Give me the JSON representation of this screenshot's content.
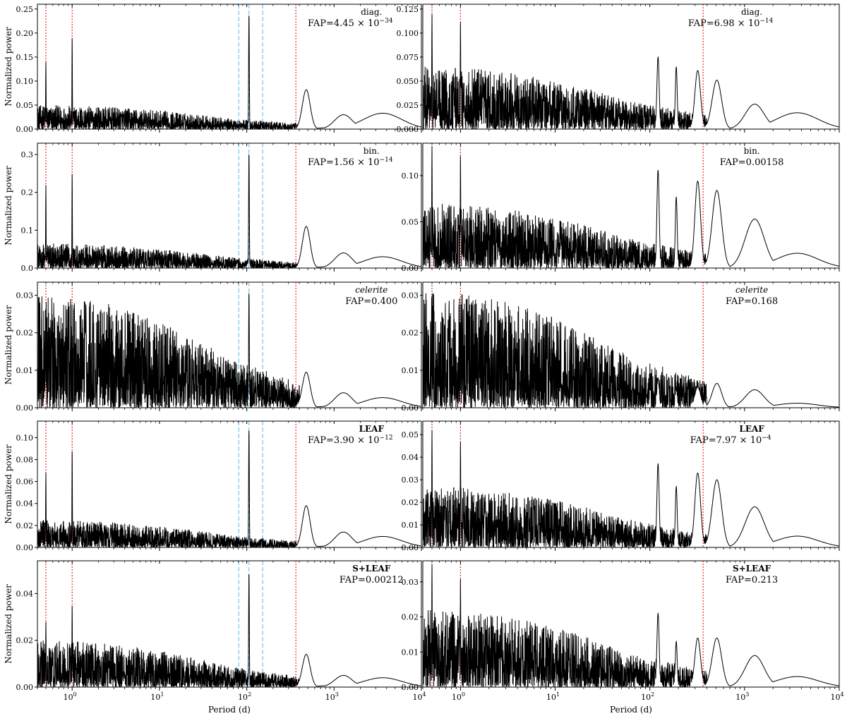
{
  "figure": {
    "xlabel_left": "Period (d)",
    "xlabel_right": "Period (d)",
    "ylabel": "Normalized power"
  },
  "chart_data": [
    {
      "type": "line",
      "panel": "diag-left",
      "title": "diag.",
      "fap_prefix": "FAP=4.45 × 10",
      "fap_exp": "−34",
      "xscale": "log",
      "xlim": [
        0.4,
        10000
      ],
      "ylim": [
        0,
        0.26
      ],
      "yticks": [
        "0.00",
        "0.05",
        "0.10",
        "0.15",
        "0.20",
        "0.25"
      ],
      "yvals": [
        0,
        0.05,
        0.1,
        0.15,
        0.2,
        0.25
      ],
      "xlabel": "",
      "ylabel": "Normalized power",
      "red_lines": [
        0.5,
        1.0,
        365
      ],
      "blue_lines": [
        81,
        106,
        152
      ],
      "peaks": {
        "p05": 0.14,
        "p1": 0.19,
        "p106": 0.24,
        "p480": 0.082,
        "p1200": 0.03,
        "p3500": 0.033
      },
      "noise": [
        0.05,
        0.025
      ],
      "right": false
    },
    {
      "type": "line",
      "panel": "diag-right",
      "title": "diag.",
      "fap_prefix": "FAP=6.98 × 10",
      "fap_exp": "−14",
      "xscale": "log",
      "xlim": [
        0.4,
        10000
      ],
      "ylim": [
        0,
        0.13
      ],
      "yticks": [
        "0.000",
        "0.025",
        "0.050",
        "0.075",
        "0.100",
        "0.125"
      ],
      "yvals": [
        0,
        0.025,
        0.05,
        0.075,
        0.1,
        0.125
      ],
      "xlabel": "",
      "ylabel": "",
      "red_lines": [
        0.5,
        1.0,
        365
      ],
      "blue_lines": [],
      "peaks": {
        "p05": 0.12,
        "p1": 0.112,
        "p125": 0.075,
        "p190": 0.065,
        "p320": 0.061,
        "p510": 0.051,
        "p1200": 0.026,
        "p3500": 0.017
      },
      "noise": [
        0.065,
        0.03
      ],
      "right": true
    },
    {
      "type": "line",
      "panel": "bin-left",
      "title": "bin.",
      "fap_prefix": "FAP=1.56 × 10",
      "fap_exp": "−14",
      "xscale": "log",
      "xlim": [
        0.4,
        10000
      ],
      "ylim": [
        0,
        0.33
      ],
      "yticks": [
        "0.0",
        "0.1",
        "0.2",
        "0.3"
      ],
      "yvals": [
        0,
        0.1,
        0.2,
        0.3
      ],
      "xlabel": "",
      "ylabel": "Normalized power",
      "red_lines": [
        0.5,
        1.0,
        365
      ],
      "blue_lines": [
        81,
        106,
        152
      ],
      "peaks": {
        "p05": 0.22,
        "p1": 0.25,
        "p106": 0.305,
        "p480": 0.11,
        "p1200": 0.04,
        "p3500": 0.03
      },
      "noise": [
        0.065,
        0.03
      ],
      "right": false
    },
    {
      "type": "line",
      "panel": "bin-right",
      "title": "bin.",
      "fap_prefix": "FAP=0.00158",
      "fap_exp": "",
      "xscale": "log",
      "xlim": [
        0.4,
        10000
      ],
      "ylim": [
        0,
        0.135
      ],
      "yticks": [
        "0.00",
        "0.05",
        "0.10"
      ],
      "yvals": [
        0,
        0.05,
        0.1
      ],
      "xlabel": "",
      "ylabel": "",
      "red_lines": [
        0.5,
        1.0,
        365
      ],
      "blue_lines": [],
      "peaks": {
        "p05": 0.132,
        "p1": 0.122,
        "p125": 0.106,
        "p190": 0.077,
        "p320": 0.094,
        "p510": 0.084,
        "p1200": 0.053,
        "p3500": 0.016
      },
      "noise": [
        0.07,
        0.035
      ],
      "right": true
    },
    {
      "type": "line",
      "panel": "celerite-left",
      "title": "celerite",
      "fap_prefix": "FAP=0.400",
      "fap_exp": "",
      "xscale": "log",
      "xlim": [
        0.4,
        10000
      ],
      "ylim": [
        0,
        0.0335
      ],
      "yticks": [
        "0.00",
        "0.01",
        "0.02",
        "0.03"
      ],
      "yvals": [
        0,
        0.01,
        0.02,
        0.03
      ],
      "xlabel": "",
      "ylabel": "Normalized power",
      "red_lines": [
        0.5,
        1.0,
        365
      ],
      "blue_lines": [
        81,
        106,
        152
      ],
      "peaks": {
        "p106": 0.031,
        "p480": 0.0095,
        "p1200": 0.004,
        "p3500": 0.0027
      },
      "noise": [
        0.03,
        0.022
      ],
      "right": false
    },
    {
      "type": "line",
      "panel": "celerite-right",
      "title": "celerite",
      "fap_prefix": "FAP=0.168",
      "fap_exp": "",
      "xscale": "log",
      "xlim": [
        0.4,
        10000
      ],
      "ylim": [
        0,
        0.0335
      ],
      "yticks": [
        "0.00",
        "0.01",
        "0.02",
        "0.03"
      ],
      "yvals": [
        0,
        0.01,
        0.02,
        0.03
      ],
      "xlabel": "",
      "ylabel": "",
      "red_lines": [
        0.5,
        1.0,
        365
      ],
      "blue_lines": [],
      "peaks": {
        "p125": 0.008,
        "p190": 0.005,
        "p320": 0.0055,
        "p510": 0.0065,
        "p1200": 0.0048,
        "p3500": 0.0012
      },
      "noise": [
        0.031,
        0.022
      ],
      "right": true
    },
    {
      "type": "line",
      "panel": "leaf-left",
      "title": "LEAF",
      "fap_prefix": "FAP=3.90 × 10",
      "fap_exp": "−12",
      "xscale": "log",
      "xlim": [
        0.4,
        10000
      ],
      "ylim": [
        0,
        0.115
      ],
      "yticks": [
        "0.00",
        "0.02",
        "0.04",
        "0.06",
        "0.08",
        "0.10"
      ],
      "yvals": [
        0,
        0.02,
        0.04,
        0.06,
        0.08,
        0.1
      ],
      "xlabel": "",
      "ylabel": "Normalized power",
      "red_lines": [
        0.5,
        1.0,
        365
      ],
      "blue_lines": [
        81,
        106,
        152
      ],
      "peaks": {
        "p05": 0.068,
        "p1": 0.088,
        "p106": 0.108,
        "p480": 0.038,
        "p1200": 0.014,
        "p3500": 0.01
      },
      "noise": [
        0.025,
        0.013
      ],
      "right": false
    },
    {
      "type": "line",
      "panel": "leaf-right",
      "title": "LEAF",
      "fap_prefix": "FAP=7.97 × 10",
      "fap_exp": "−4",
      "xscale": "log",
      "xlim": [
        0.4,
        10000
      ],
      "ylim": [
        0,
        0.056
      ],
      "yticks": [
        "0.00",
        "0.01",
        "0.02",
        "0.03",
        "0.04",
        "0.05"
      ],
      "yvals": [
        0,
        0.01,
        0.02,
        0.03,
        0.04,
        0.05
      ],
      "xlabel": "",
      "ylabel": "",
      "red_lines": [
        0.5,
        1.0,
        365
      ],
      "blue_lines": [],
      "peaks": {
        "p05": 0.052,
        "p1": 0.047,
        "p125": 0.037,
        "p190": 0.027,
        "p320": 0.033,
        "p510": 0.03,
        "p1200": 0.018,
        "p3500": 0.005
      },
      "noise": [
        0.027,
        0.014
      ],
      "right": true
    },
    {
      "type": "line",
      "panel": "sleaf-left",
      "title": "S+LEAF",
      "fap_prefix": "FAP=0.00212",
      "fap_exp": "",
      "xscale": "log",
      "xlim": [
        0.4,
        10000
      ],
      "ylim": [
        0,
        0.054
      ],
      "yticks": [
        "0.00",
        "0.02",
        "0.04"
      ],
      "yvals": [
        0,
        0.02,
        0.04
      ],
      "xlabel": "Period (d)",
      "ylabel": "Normalized power",
      "red_lines": [
        0.5,
        1.0,
        365
      ],
      "blue_lines": [
        81,
        106,
        152
      ],
      "peaks": {
        "p05": 0.028,
        "p1": 0.035,
        "p106": 0.049,
        "p480": 0.014,
        "p1200": 0.005,
        "p3500": 0.004
      },
      "noise": [
        0.02,
        0.013
      ],
      "right": false
    },
    {
      "type": "line",
      "panel": "sleaf-right",
      "title": "S+LEAF",
      "fap_prefix": "FAP=0.213",
      "fap_exp": "",
      "xscale": "log",
      "xlim": [
        0.4,
        10000
      ],
      "ylim": [
        0,
        0.036
      ],
      "yticks": [
        "0.00",
        "0.01",
        "0.02",
        "0.03"
      ],
      "yvals": [
        0,
        0.01,
        0.02,
        0.03
      ],
      "xlabel": "Period (d)",
      "ylabel": "",
      "red_lines": [
        0.5,
        1.0,
        365
      ],
      "blue_lines": [],
      "peaks": {
        "p05": 0.035,
        "p1": 0.031,
        "p125": 0.021,
        "p190": 0.013,
        "p320": 0.014,
        "p510": 0.014,
        "p1200": 0.009,
        "p3500": 0.003
      },
      "noise": [
        0.022,
        0.012
      ],
      "right": true
    }
  ],
  "colors": {
    "line": "#000000",
    "red_marker": "#e41a1c",
    "blue_marker": "#6ec6ea"
  }
}
